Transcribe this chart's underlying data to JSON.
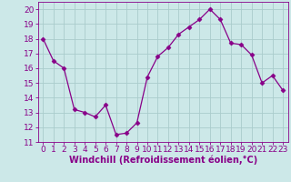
{
  "x": [
    0,
    1,
    2,
    3,
    4,
    5,
    6,
    7,
    8,
    9,
    10,
    11,
    12,
    13,
    14,
    15,
    16,
    17,
    18,
    19,
    20,
    21,
    22,
    23
  ],
  "y": [
    18.0,
    16.5,
    16.0,
    13.2,
    13.0,
    12.7,
    13.5,
    11.5,
    11.6,
    12.3,
    15.4,
    16.8,
    17.4,
    18.3,
    18.8,
    19.3,
    20.0,
    19.3,
    17.7,
    17.6,
    16.9,
    15.0,
    15.5,
    14.5
  ],
  "line_color": "#880088",
  "marker": "D",
  "marker_size": 2.5,
  "bg_color": "#cce8e8",
  "grid_color": "#aacccc",
  "xlabel": "Windchill (Refroidissement éolien,°C)",
  "xlabel_fontsize": 7,
  "tick_fontsize": 6.5,
  "ylim": [
    11,
    20.5
  ],
  "xlim": [
    -0.5,
    23.5
  ],
  "yticks": [
    11,
    12,
    13,
    14,
    15,
    16,
    17,
    18,
    19,
    20
  ],
  "xticks": [
    0,
    1,
    2,
    3,
    4,
    5,
    6,
    7,
    8,
    9,
    10,
    11,
    12,
    13,
    14,
    15,
    16,
    17,
    18,
    19,
    20,
    21,
    22,
    23
  ]
}
